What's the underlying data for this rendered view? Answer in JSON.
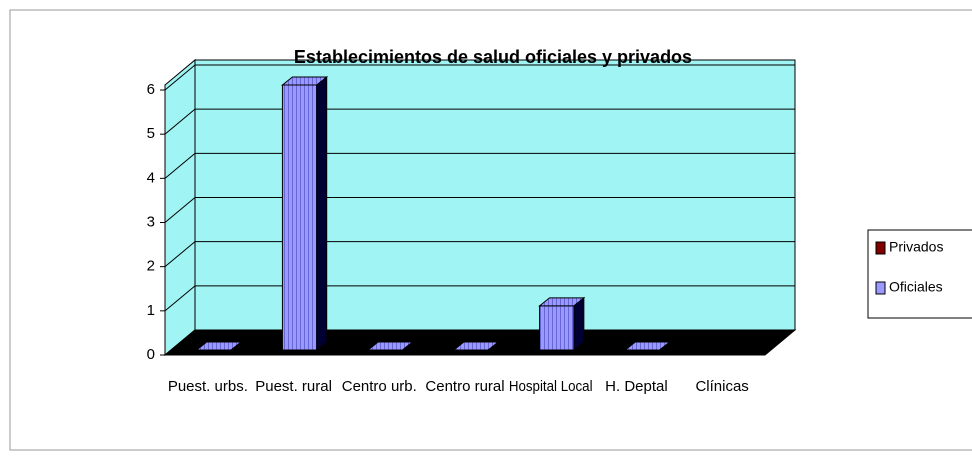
{
  "chart_data": {
    "type": "bar3d",
    "title": "Establecimientos de salud oficiales y privados",
    "categories": [
      "Puest. urbs.",
      "Puest. rural",
      "Centro urb.",
      "Centro rural",
      "Hospital Local",
      "H. Deptal",
      "Clínicas"
    ],
    "series": [
      {
        "name": "Privados",
        "color": "#800000",
        "values": [
          null,
          null,
          null,
          null,
          null,
          null,
          null
        ]
      },
      {
        "name": "Oficiales",
        "color": "#9999ff",
        "values": [
          0,
          6,
          0,
          0,
          1,
          0,
          null
        ]
      }
    ],
    "ylim": [
      0,
      6
    ],
    "yticks": [
      0,
      1,
      2,
      3,
      4,
      5,
      6
    ],
    "grid": true,
    "legend": "right",
    "wall_color": "#a0f4f4",
    "floor_color": "#000000"
  }
}
